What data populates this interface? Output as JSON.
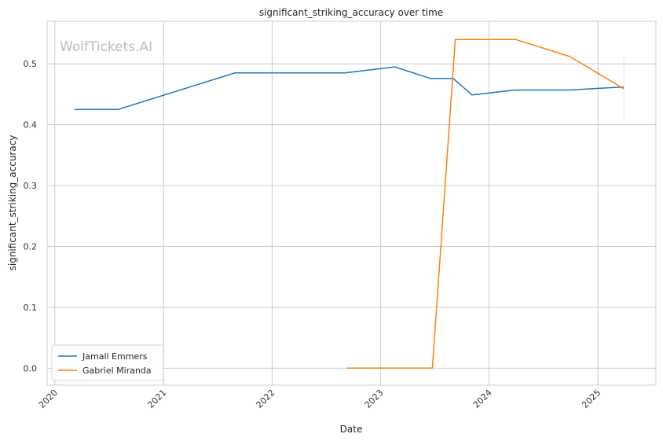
{
  "chart_data": {
    "type": "line",
    "title": "significant_striking_accuracy over time",
    "xlabel": "Date",
    "ylabel": "significant_striking_accuracy",
    "watermark": "WolfTickets.AI",
    "x_ticks": [
      "2020",
      "2021",
      "2022",
      "2023",
      "2024",
      "2025"
    ],
    "y_ticks": [
      "0.0",
      "0.1",
      "0.2",
      "0.3",
      "0.4",
      "0.5"
    ],
    "xlim": [
      "2019-12-06",
      "2025-07-15"
    ],
    "ylim": [
      -0.028,
      0.57
    ],
    "grid": true,
    "legend_position": "lower-left",
    "series": [
      {
        "name": "Jamall Emmers",
        "color": "#1f77b4",
        "points": [
          {
            "x": "2020-03-07",
            "y": 0.425
          },
          {
            "x": "2020-07-31",
            "y": 0.425
          },
          {
            "x": "2021-08-28",
            "y": 0.485
          },
          {
            "x": "2022-09-03",
            "y": 0.485
          },
          {
            "x": "2023-02-18",
            "y": 0.495
          },
          {
            "x": "2023-06-17",
            "y": 0.476
          },
          {
            "x": "2023-09-02",
            "y": 0.476
          },
          {
            "x": "2023-11-04",
            "y": 0.449
          },
          {
            "x": "2024-03-30",
            "y": 0.457
          },
          {
            "x": "2024-09-28",
            "y": 0.457
          },
          {
            "x": "2025-03-29",
            "y": 0.462
          }
        ]
      },
      {
        "name": "Gabriel Miranda",
        "color": "#ff7f0e",
        "points": [
          {
            "x": "2022-09-10",
            "y": 0.0
          },
          {
            "x": "2023-06-24",
            "y": 0.0
          },
          {
            "x": "2023-09-09",
            "y": 0.54
          },
          {
            "x": "2024-03-30",
            "y": 0.54
          },
          {
            "x": "2024-09-28",
            "y": 0.512
          },
          {
            "x": "2025-03-29",
            "y": 0.459
          }
        ],
        "error_bar": {
          "x": "2025-03-29",
          "low": 0.408,
          "high": 0.51
        }
      }
    ]
  }
}
